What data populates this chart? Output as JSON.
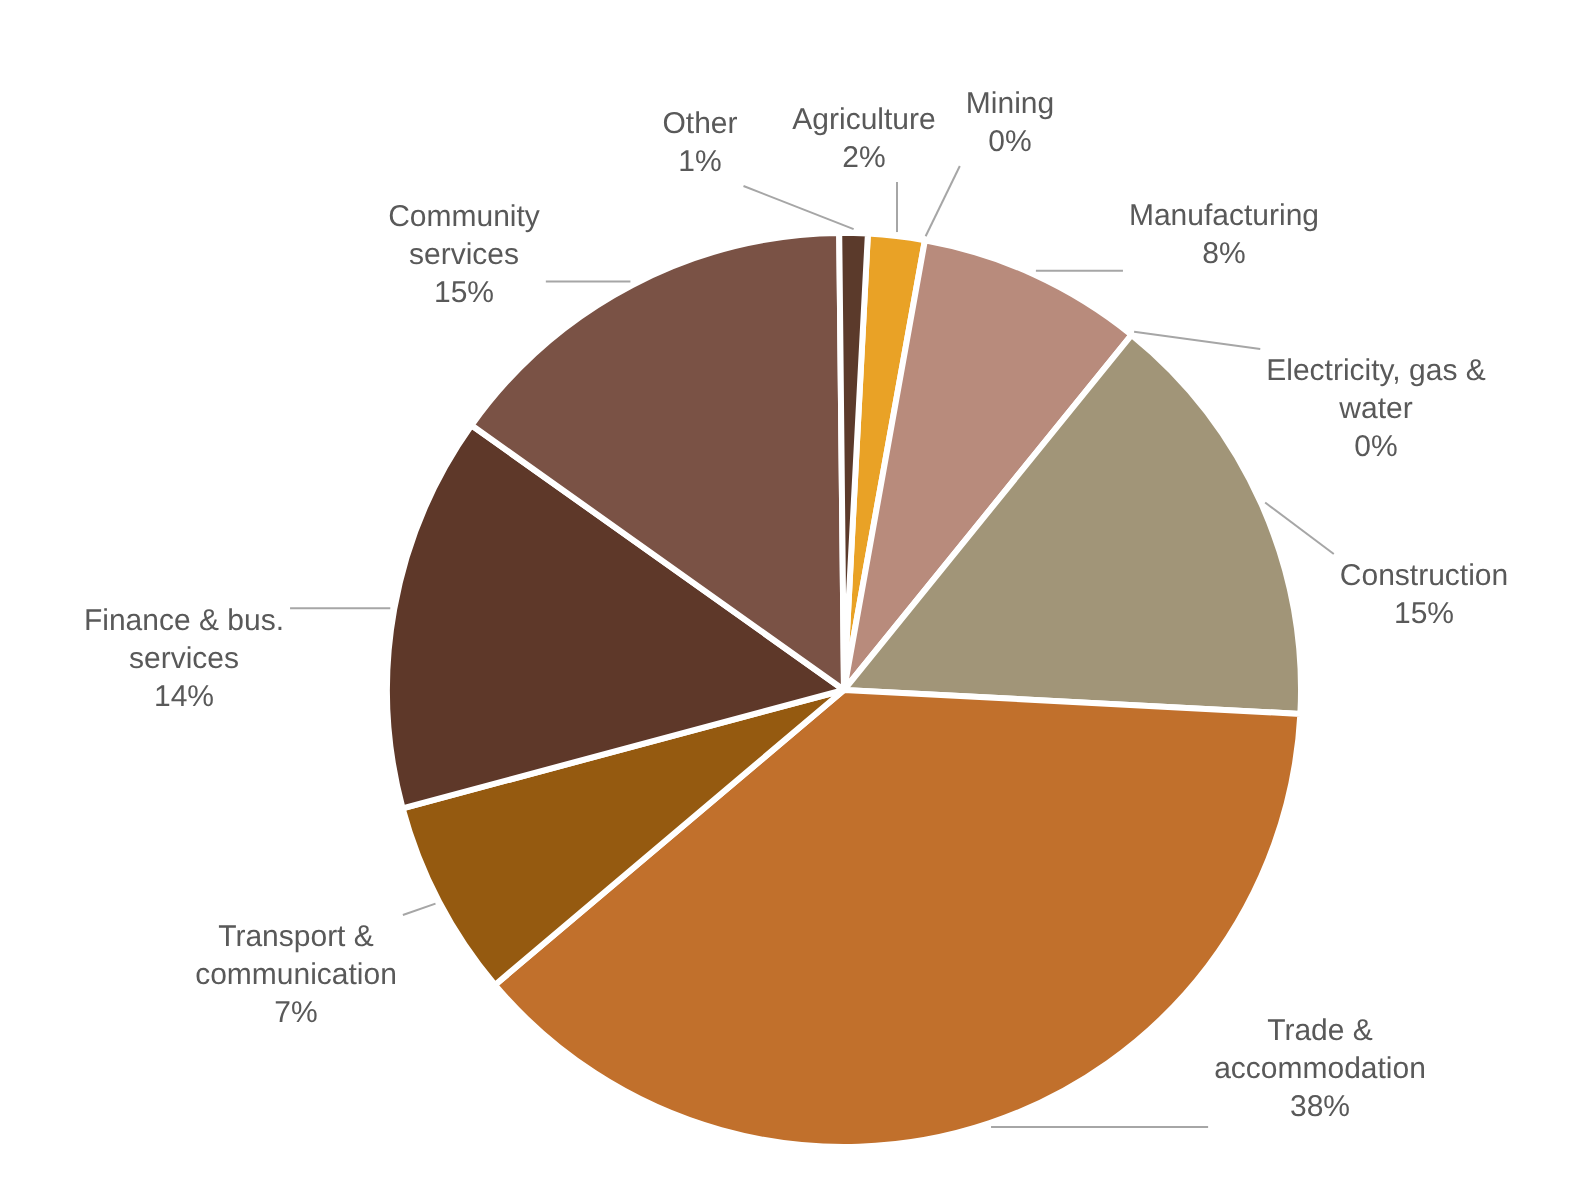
{
  "chart_data": {
    "type": "pie",
    "categories": [
      "Agriculture",
      "Mining",
      "Manufacturing",
      "Electricity, gas & water",
      "Construction",
      "Trade & accommodation",
      "Transport & communication",
      "Finance & bus. services",
      "Community services",
      "Other"
    ],
    "values": [
      2,
      0,
      8,
      0,
      15,
      38,
      7,
      14,
      15,
      1
    ],
    "value_labels": [
      "2%",
      "0%",
      "8%",
      "0%",
      "15%",
      "38%",
      "7%",
      "14%",
      "15%",
      "1%"
    ],
    "colors": [
      "#e9a226",
      "#c9c3b8",
      "#b88b7c",
      "#d9cfc0",
      "#a19578",
      "#c1702c",
      "#955a10",
      "#5e3829",
      "#7a5245",
      "#5b3a2b"
    ]
  }
}
